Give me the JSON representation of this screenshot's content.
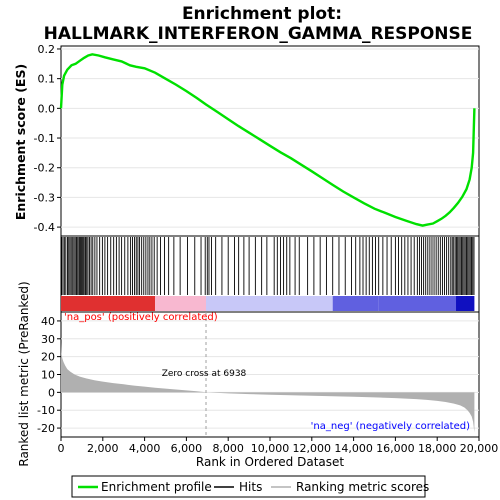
{
  "chart_data": [
    {
      "type": "line",
      "title": "Enrichment plot:\nHALLMARK_INTERFERON_GAMMA_RESPONSE",
      "title_lines": [
        "Enrichment plot:",
        "HALLMARK_INTERFERON_GAMMA_RESPONSE"
      ],
      "ylabel": "Enrichment score (ES)",
      "xlim": [
        0,
        20000
      ],
      "ylim": [
        -0.43,
        0.21
      ],
      "y_ticks": [
        0.2,
        0.1,
        0.0,
        -0.1,
        -0.2,
        -0.3,
        -0.4
      ],
      "y_tick_labels": [
        "0.2",
        "0.1",
        "0.0",
        "-0.1",
        "-0.2",
        "-0.3",
        "-0.4"
      ],
      "series": [
        {
          "name": "Enrichment profile",
          "color": "#00e000",
          "x": [
            0,
            60,
            150,
            300,
            500,
            700,
            900,
            1100,
            1300,
            1500,
            1800,
            2100,
            2500,
            2900,
            3300,
            3600,
            4000,
            4500,
            5000,
            5500,
            6000,
            6500,
            6938,
            7500,
            8000,
            8500,
            9000,
            9500,
            10000,
            10500,
            11000,
            11500,
            12000,
            12500,
            13000,
            13500,
            14000,
            14500,
            15000,
            15500,
            16000,
            16500,
            17000,
            17300,
            17500,
            17800,
            18000,
            18200,
            18400,
            18600,
            18800,
            19000,
            19200,
            19400,
            19550,
            19650,
            19720,
            19780
          ],
          "y": [
            0.0,
            0.08,
            0.11,
            0.13,
            0.145,
            0.15,
            0.16,
            0.17,
            0.178,
            0.182,
            0.178,
            0.172,
            0.165,
            0.158,
            0.145,
            0.14,
            0.135,
            0.12,
            0.1,
            0.08,
            0.058,
            0.035,
            0.013,
            -0.013,
            -0.037,
            -0.06,
            -0.082,
            -0.104,
            -0.126,
            -0.148,
            -0.168,
            -0.19,
            -0.212,
            -0.235,
            -0.258,
            -0.28,
            -0.3,
            -0.32,
            -0.338,
            -0.352,
            -0.366,
            -0.378,
            -0.39,
            -0.395,
            -0.392,
            -0.388,
            -0.38,
            -0.372,
            -0.362,
            -0.35,
            -0.335,
            -0.318,
            -0.298,
            -0.272,
            -0.24,
            -0.2,
            -0.15,
            0.0
          ]
        }
      ]
    },
    {
      "type": "hits",
      "xlim": [
        0,
        20000
      ],
      "hit_positions": [
        30,
        95,
        160,
        230,
        310,
        370,
        430,
        490,
        560,
        620,
        680,
        740,
        800,
        860,
        910,
        960,
        1010,
        1060,
        1110,
        1170,
        1230,
        1290,
        1360,
        1440,
        1520,
        1620,
        1720,
        1850,
        1980,
        2100,
        2230,
        2380,
        2520,
        2650,
        2780,
        2900,
        3050,
        3200,
        3330,
        3420,
        3520,
        3600,
        3680,
        3760,
        3860,
        3960,
        4060,
        4160,
        4250,
        4350,
        4460,
        4600,
        4760,
        4950,
        5150,
        5400,
        5700,
        6050,
        6400,
        6700,
        6900,
        7000,
        7080,
        7200,
        7400,
        7700,
        8000,
        8300,
        8500,
        8750,
        9000,
        9300,
        9600,
        9850,
        10200,
        10350,
        10500,
        10650,
        10800,
        10950,
        11200,
        11400,
        11800,
        12100,
        12400,
        12700,
        13000,
        13300,
        13600,
        13900,
        14100,
        14300,
        14450,
        14600,
        14750,
        14900,
        15050,
        15200,
        15400,
        15600,
        15800,
        16000,
        16150,
        16300,
        16450,
        16600,
        16750,
        16900,
        17050,
        17150,
        17250,
        17350,
        17450,
        17550,
        17650,
        17750,
        17850,
        17950,
        18050,
        18150,
        18250,
        18350,
        18450,
        18550,
        18650,
        18720,
        18790,
        18860,
        18920,
        18980,
        19040,
        19100,
        19160,
        19220,
        19280,
        19340,
        19400,
        19460,
        19520,
        19580,
        19640,
        19700,
        19760
      ]
    },
    {
      "type": "area",
      "xlabel": "Rank in Ordered Dataset",
      "ylabel": "Ranked list metric (PreRanked)",
      "xlim": [
        0,
        20000
      ],
      "ylim": [
        -25,
        45
      ],
      "x_ticks": [
        0,
        2000,
        4000,
        6000,
        8000,
        10000,
        12000,
        14000,
        16000,
        18000,
        20000
      ],
      "x_tick_labels": [
        "0",
        "2,000",
        "4,000",
        "6,000",
        "8,000",
        "10,000",
        "12,000",
        "14,000",
        "16,000",
        "18,000",
        "20,000"
      ],
      "y_ticks": [
        40,
        30,
        20,
        10,
        0,
        -10,
        -20
      ],
      "y_tick_labels": [
        "40",
        "30",
        "20",
        "10",
        "0",
        "-10",
        "-20"
      ],
      "x": [
        0,
        20,
        60,
        120,
        200,
        300,
        450,
        650,
        900,
        1200,
        1600,
        2000,
        2500,
        3000,
        3500,
        4000,
        4500,
        5000,
        5500,
        6000,
        6500,
        6938,
        7500,
        8000,
        9000,
        10000,
        11000,
        12000,
        13000,
        14000,
        15000,
        16000,
        16500,
        17000,
        17500,
        18000,
        18400,
        18800,
        19100,
        19300,
        19450,
        19550,
        19650,
        19720,
        19780
      ],
      "values": [
        28,
        22,
        19,
        17,
        15,
        13,
        11.5,
        10,
        8.8,
        7.8,
        6.8,
        6,
        5.2,
        4.5,
        3.8,
        3.2,
        2.6,
        2.1,
        1.6,
        1.1,
        0.6,
        0.1,
        -0.3,
        -0.6,
        -1,
        -1.3,
        -1.6,
        -1.9,
        -2.2,
        -2.5,
        -2.8,
        -3.2,
        -3.5,
        -3.8,
        -4.2,
        -4.8,
        -5.4,
        -6.3,
        -7.3,
        -8.5,
        -10,
        -11.5,
        -13.5,
        -16.5,
        -22.5
      ],
      "fill_color": "#b0b0b0",
      "zero_cross_rank": 6938,
      "annotations": {
        "zero_cross": "Zero cross at 6938",
        "pos_label": "'na_pos' (positively correlated)",
        "neg_label": "'na_neg' (negatively correlated)"
      },
      "colors": {
        "pos_label": "#ff0000",
        "neg_label": "#0000ff",
        "bar_strong_pos": "#e03030",
        "bar_light_pos": "#f8b8d0",
        "bar_light_neg": "#c8c8f8",
        "bar_mid_neg": "#6060e0",
        "bar_strong_neg": "#1010c0"
      }
    }
  ],
  "legend": {
    "items": [
      {
        "label": "Enrichment profile",
        "color": "#00e000"
      },
      {
        "label": "Hits",
        "color": "#000000"
      },
      {
        "label": "Ranking metric scores",
        "color": "#b0b0b0"
      }
    ]
  }
}
